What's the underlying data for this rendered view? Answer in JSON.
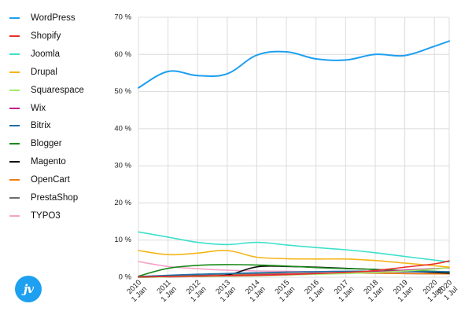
{
  "chart_data": {
    "type": "line",
    "title": "",
    "xlabel": "",
    "ylabel": "",
    "ylim": [
      0,
      70
    ],
    "yticks": [
      "0 %",
      "10 %",
      "20 %",
      "30 %",
      "40 %",
      "50 %",
      "60 %",
      "70 %"
    ],
    "x": [
      "2010-01",
      "2011-01",
      "2012-01",
      "2013-01",
      "2014-01",
      "2015-01",
      "2016-01",
      "2017-01",
      "2018-01",
      "2019-01",
      "2020-01",
      "2020-07"
    ],
    "xticks": [
      {
        "year": "2010",
        "day": "1 Jan"
      },
      {
        "year": "2011",
        "day": "1 Jan"
      },
      {
        "year": "2012",
        "day": "1 Jan"
      },
      {
        "year": "2013",
        "day": "1 Jan"
      },
      {
        "year": "2014",
        "day": "1 Jan"
      },
      {
        "year": "2015",
        "day": "1 Jan"
      },
      {
        "year": "2016",
        "day": "1 Jan"
      },
      {
        "year": "2017",
        "day": "1 Jan"
      },
      {
        "year": "2018",
        "day": "1 Jan"
      },
      {
        "year": "2019",
        "day": "1 Jan"
      },
      {
        "year": "2020",
        "day": "1 Jan"
      },
      {
        "year": "2020",
        "day": "1 Jul"
      }
    ],
    "grid": true,
    "legend_position": "left",
    "series": [
      {
        "name": "WordPress",
        "color": "#1e9ff0",
        "values": [
          51.0,
          55.4,
          54.3,
          54.8,
          59.8,
          60.7,
          58.8,
          58.5,
          60.0,
          59.7,
          62.2,
          63.6
        ]
      },
      {
        "name": "Shopify",
        "color": "#e8302a",
        "values": [
          0.1,
          0.2,
          0.3,
          0.4,
          0.5,
          0.7,
          1.0,
          1.3,
          1.8,
          2.7,
          3.6,
          4.4
        ]
      },
      {
        "name": "Joomla",
        "color": "#3de0cc",
        "values": [
          12.2,
          10.8,
          9.4,
          8.8,
          9.4,
          8.7,
          8.0,
          7.4,
          6.6,
          5.6,
          4.6,
          4.1
        ]
      },
      {
        "name": "Drupal",
        "color": "#f4b518",
        "values": [
          7.2,
          6.1,
          6.5,
          7.2,
          5.4,
          5.0,
          4.9,
          4.9,
          4.5,
          3.8,
          3.1,
          2.7
        ]
      },
      {
        "name": "Squarespace",
        "color": "#a2ec6c",
        "values": [
          0.0,
          0.1,
          0.2,
          0.3,
          0.4,
          0.6,
          0.8,
          1.0,
          1.3,
          1.7,
          2.2,
          2.6
        ]
      },
      {
        "name": "Wix",
        "color": "#c0208f",
        "values": [
          0.0,
          0.1,
          0.2,
          0.4,
          0.6,
          0.8,
          1.0,
          1.2,
          1.5,
          1.9,
          2.3,
          2.5
        ]
      },
      {
        "name": "Bitrix",
        "color": "#1f6ea8",
        "values": [
          0.2,
          0.5,
          0.8,
          1.0,
          1.2,
          1.4,
          1.5,
          1.6,
          1.6,
          1.5,
          1.5,
          1.5
        ]
      },
      {
        "name": "Blogger",
        "color": "#1a8a1a",
        "values": [
          0.3,
          2.4,
          3.2,
          3.4,
          3.3,
          3.0,
          2.6,
          2.3,
          2.1,
          1.8,
          1.6,
          1.4
        ]
      },
      {
        "name": "Magento",
        "color": "#111111",
        "values": [
          0.0,
          0.1,
          0.3,
          0.6,
          2.8,
          2.9,
          2.7,
          2.4,
          2.1,
          1.7,
          1.3,
          1.1
        ]
      },
      {
        "name": "OpenCart",
        "color": "#f07d12",
        "values": [
          0.0,
          0.1,
          0.3,
          0.5,
          0.7,
          0.9,
          1.0,
          1.1,
          1.1,
          1.0,
          0.9,
          0.9
        ]
      },
      {
        "name": "PrestaShop",
        "color": "#6d6d6d",
        "values": [
          0.1,
          0.3,
          0.5,
          0.7,
          0.9,
          1.0,
          1.1,
          1.1,
          1.1,
          1.0,
          0.9,
          0.9
        ]
      },
      {
        "name": "TYPO3",
        "color": "#f5a3c7",
        "values": [
          4.2,
          2.9,
          2.3,
          1.9,
          1.7,
          1.6,
          1.5,
          1.4,
          1.3,
          1.1,
          1.0,
          0.9
        ]
      }
    ]
  },
  "logo": {
    "text": "jv"
  }
}
